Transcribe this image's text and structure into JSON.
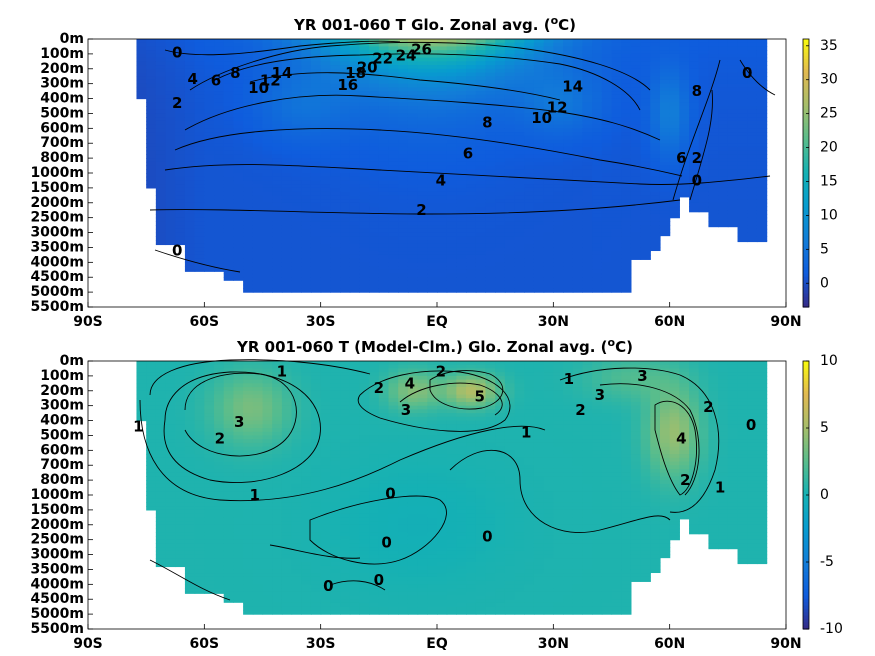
{
  "chart_data": [
    {
      "type": "heatmap",
      "title": "YR 001-060 T Glo. Zonal avg. (",
      "title_sup": "o",
      "title_end": "C)",
      "x_ticks": [
        "90S",
        "60S",
        "30S",
        "EQ",
        "30N",
        "60N",
        "90N"
      ],
      "x_tick_values": [
        -90,
        -60,
        -30,
        0,
        30,
        60,
        90
      ],
      "y_ticks": [
        "0m",
        "100m",
        "200m",
        "300m",
        "400m",
        "500m",
        "600m",
        "700m",
        "800m",
        "1000m",
        "1500m",
        "2000m",
        "2500m",
        "3000m",
        "3500m",
        "4000m",
        "4500m",
        "5000m",
        "5500m"
      ],
      "colorbar_ticks": [
        "35",
        "30",
        "25",
        "20",
        "15",
        "10",
        "5",
        "0"
      ],
      "colorbar_tick_values": [
        35,
        30,
        25,
        20,
        15,
        10,
        5,
        0
      ],
      "colorbar_range": [
        -3.5,
        36
      ],
      "colormap": "parula",
      "contour_labels": [
        {
          "text": "26",
          "lat": -4,
          "depth_index": 0.7
        },
        {
          "text": "24",
          "lat": -8,
          "depth_index": 1.1
        },
        {
          "text": "22",
          "lat": -14,
          "depth_index": 1.3
        },
        {
          "text": "20",
          "lat": -18,
          "depth_index": 1.9
        },
        {
          "text": "18",
          "lat": -21,
          "depth_index": 2.3
        },
        {
          "text": "16",
          "lat": -23,
          "depth_index": 3.1
        },
        {
          "text": "14",
          "lat": -40,
          "depth_index": 2.3
        },
        {
          "text": "12",
          "lat": -43,
          "depth_index": 2.8
        },
        {
          "text": "10",
          "lat": -46,
          "depth_index": 3.3
        },
        {
          "text": "8",
          "lat": -52,
          "depth_index": 2.3
        },
        {
          "text": "6",
          "lat": -57,
          "depth_index": 2.8
        },
        {
          "text": "4",
          "lat": -63,
          "depth_index": 2.7
        },
        {
          "text": "2",
          "lat": -67,
          "depth_index": 4.3
        },
        {
          "text": "0",
          "lat": -67,
          "depth_index": 0.9
        },
        {
          "text": "14",
          "lat": 35,
          "depth_index": 3.2
        },
        {
          "text": "12",
          "lat": 31,
          "depth_index": 4.6
        },
        {
          "text": "10",
          "lat": 27,
          "depth_index": 5.3
        },
        {
          "text": "8",
          "lat": 13,
          "depth_index": 5.6
        },
        {
          "text": "6",
          "lat": 8,
          "depth_index": 7.7
        },
        {
          "text": "4",
          "lat": 1,
          "depth_index": 9.5
        },
        {
          "text": "2",
          "lat": -4,
          "depth_index": 11.5
        },
        {
          "text": "0",
          "lat": -67,
          "depth_index": 14.2
        },
        {
          "text": "8",
          "lat": 67,
          "depth_index": 3.5
        },
        {
          "text": "6",
          "lat": 63,
          "depth_index": 8.0
        },
        {
          "text": "2",
          "lat": 67,
          "depth_index": 8.0
        },
        {
          "text": "0",
          "lat": 67,
          "depth_index": 9.5
        },
        {
          "text": "0",
          "lat": 80,
          "depth_index": 2.3
        }
      ]
    },
    {
      "type": "heatmap",
      "title": "YR 001-060 T (Model-Clm.) Glo. Zonal avg. (",
      "title_sup": "o",
      "title_end": "C)",
      "x_ticks": [
        "90S",
        "60S",
        "30S",
        "EQ",
        "30N",
        "60N",
        "90N"
      ],
      "x_tick_values": [
        -90,
        -60,
        -30,
        0,
        30,
        60,
        90
      ],
      "y_ticks": [
        "0m",
        "100m",
        "200m",
        "300m",
        "400m",
        "500m",
        "600m",
        "700m",
        "800m",
        "1000m",
        "1500m",
        "2000m",
        "2500m",
        "3000m",
        "3500m",
        "4000m",
        "4500m",
        "5000m",
        "5500m"
      ],
      "colorbar_ticks": [
        "10",
        "5",
        "0",
        "-5",
        "-10"
      ],
      "colorbar_tick_values": [
        10,
        5,
        0,
        -5,
        -10
      ],
      "colorbar_range": [
        -10,
        10
      ],
      "colormap": "parula",
      "contour_labels": [
        {
          "text": "1",
          "lat": -40,
          "depth_index": 0.7
        },
        {
          "text": "3",
          "lat": -51,
          "depth_index": 4.1
        },
        {
          "text": "2",
          "lat": -56,
          "depth_index": 5.2
        },
        {
          "text": "1",
          "lat": -77,
          "depth_index": 4.4
        },
        {
          "text": "1",
          "lat": -47,
          "depth_index": 9.0
        },
        {
          "text": "2",
          "lat": -15,
          "depth_index": 1.8
        },
        {
          "text": "4",
          "lat": -7,
          "depth_index": 1.5
        },
        {
          "text": "3",
          "lat": -8,
          "depth_index": 3.3
        },
        {
          "text": "2",
          "lat": 1,
          "depth_index": 0.7
        },
        {
          "text": "5",
          "lat": 11,
          "depth_index": 2.4
        },
        {
          "text": "1",
          "lat": 23,
          "depth_index": 4.8
        },
        {
          "text": "1",
          "lat": 34,
          "depth_index": 1.2
        },
        {
          "text": "2",
          "lat": 37,
          "depth_index": 3.3
        },
        {
          "text": "3",
          "lat": 42,
          "depth_index": 2.3
        },
        {
          "text": "3",
          "lat": 53,
          "depth_index": 1.0
        },
        {
          "text": "4",
          "lat": 63,
          "depth_index": 5.2
        },
        {
          "text": "2",
          "lat": 70,
          "depth_index": 3.1
        },
        {
          "text": "2",
          "lat": 64,
          "depth_index": 8.0
        },
        {
          "text": "1",
          "lat": 73,
          "depth_index": 8.5
        },
        {
          "text": "0",
          "lat": 81,
          "depth_index": 4.3
        },
        {
          "text": "0",
          "lat": -12,
          "depth_index": 8.9
        },
        {
          "text": "0",
          "lat": -13,
          "depth_index": 12.2
        },
        {
          "text": "0",
          "lat": 13,
          "depth_index": 11.8
        },
        {
          "text": "0",
          "lat": -28,
          "depth_index": 15.1
        },
        {
          "text": "0",
          "lat": -15,
          "depth_index": 14.7
        }
      ]
    }
  ]
}
